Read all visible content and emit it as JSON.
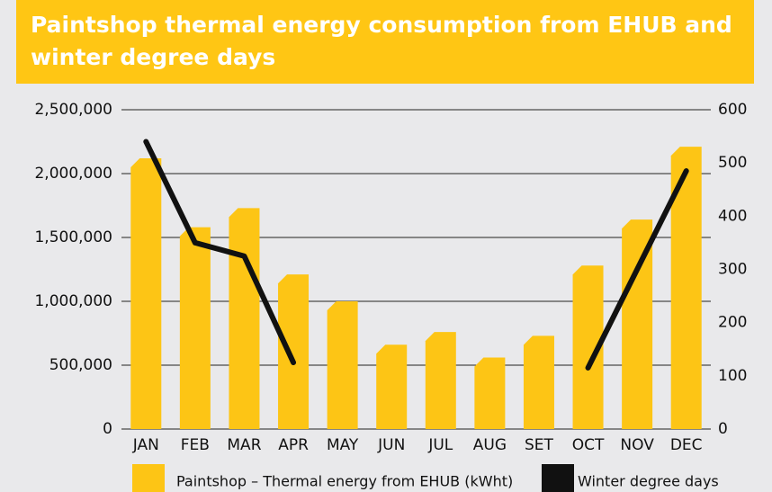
{
  "chart_data": {
    "type": "bar-line",
    "title": "Paintshop thermal energy consumption from EHUB and winter degree days",
    "categories": [
      "JAN",
      "FEB",
      "MAR",
      "APR",
      "MAY",
      "JUN",
      "JUL",
      "AUG",
      "SET",
      "OCT",
      "NOV",
      "DEC"
    ],
    "series": [
      {
        "name": "Paintshop – Thermal energy from EHUB (kWht)",
        "color": "#fdc515",
        "type": "bar",
        "values": [
          2120000,
          1580000,
          1730000,
          1210000,
          1000000,
          660000,
          760000,
          560000,
          730000,
          1280000,
          1640000,
          2210000
        ]
      },
      {
        "name": "Winter degree days",
        "color": "#111111",
        "type": "line",
        "axis": "y2",
        "values": [
          540,
          350,
          325,
          125,
          null,
          null,
          null,
          null,
          null,
          115,
          300,
          485
        ]
      }
    ],
    "ylim": [
      0,
      2500000
    ],
    "yticks": [
      0,
      {
        "value": 500000,
        "label": "500,000"
      },
      {
        "value": 1000000,
        "label": "1,000,000"
      },
      {
        "value": 1500000,
        "label": "1,500,000"
      },
      {
        "value": 2000000,
        "label": "2,000,000"
      },
      {
        "value": 2500000,
        "label": "2,500,000"
      }
    ],
    "y2lim": [
      0,
      600
    ],
    "y2ticks": [
      0,
      100,
      200,
      300,
      400,
      500,
      600
    ],
    "grid": true
  }
}
